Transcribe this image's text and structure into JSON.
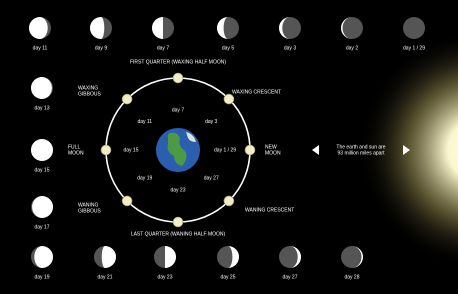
{
  "top_row": [
    "day 11",
    "day 9",
    "day 7",
    "day 5",
    "day 3",
    "day 2",
    "day 1 / 29"
  ],
  "left_column": [
    "day 13",
    "day 15",
    "day 17"
  ],
  "bottom_row": [
    "day 19",
    "day 21",
    "day 23",
    "day 25",
    "day 27",
    "day 28"
  ],
  "orbit_labels": [
    "day 1 / 29",
    "day 3",
    "day 7",
    "day 11",
    "day 15",
    "day 19",
    "day 23",
    "day 27"
  ],
  "phase_labels": [
    [
      "FIRST QUARTER (WAXING HALF MOON)"
    ],
    [
      "WAXING",
      "GIBBOUS"
    ],
    [
      "WAXING CRESCENT"
    ],
    [
      "FULL",
      "MOON"
    ],
    [
      "NEW",
      "MOON"
    ],
    [
      "WANING",
      "GIBBOUS"
    ],
    [
      "WANING CRESCENT"
    ],
    [
      "LAST QUARTER (WANING HALF MOON)"
    ]
  ],
  "note": [
    "The earth and sun are",
    "93 million miles apart"
  ]
}
